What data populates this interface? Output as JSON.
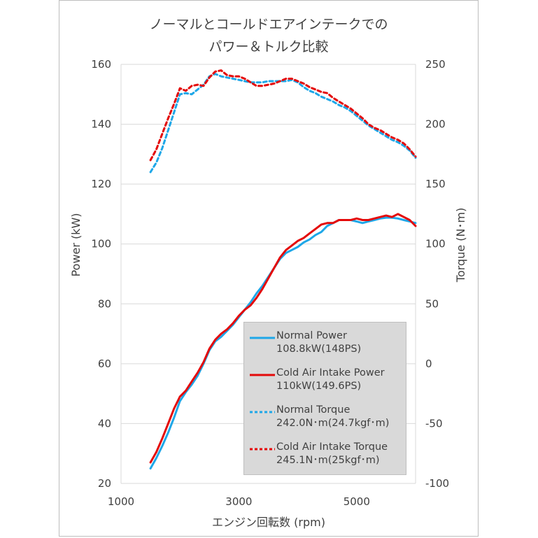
{
  "title_line1": "ノーマルとコールドエアインテークでの",
  "title_line2": "パワー＆トルク比較",
  "colors": {
    "normal": "#1ea7e8",
    "cold": "#e40a0a"
  },
  "chart_data": {
    "type": "line",
    "xlabel": "エンジン回転数 (rpm)",
    "ylabel": "Power (kW)",
    "y2label": "Torque (N･m)",
    "xlim": [
      1000,
      6000
    ],
    "ylim": [
      20,
      160
    ],
    "y2lim": [
      -100,
      250
    ],
    "x_ticks": [
      1000,
      3000,
      5000
    ],
    "y_ticks": [
      20,
      40,
      60,
      80,
      100,
      120,
      140,
      160
    ],
    "y2_ticks": [
      -100,
      -50,
      0,
      50,
      100,
      150,
      200,
      250
    ],
    "grid": "horizontal",
    "legend_position": "bottom-right inside",
    "series": [
      {
        "name": "Normal Power",
        "name_line2": "108.8kW(148PS)",
        "axis": "left",
        "style": "solid",
        "color": "#1ea7e8",
        "x": [
          1500,
          1600,
          1700,
          1800,
          1900,
          2000,
          2100,
          2200,
          2300,
          2400,
          2500,
          2600,
          2700,
          2800,
          2900,
          3000,
          3100,
          3200,
          3300,
          3400,
          3500,
          3600,
          3700,
          3800,
          3900,
          4000,
          4100,
          4200,
          4300,
          4400,
          4500,
          4600,
          4700,
          4800,
          4900,
          5000,
          5100,
          5200,
          5300,
          5400,
          5500,
          5600,
          5700,
          5800,
          5900,
          6000
        ],
        "values": [
          25,
          28.5,
          32.5,
          37,
          42,
          47.5,
          50.5,
          53,
          56,
          60,
          64.5,
          67.5,
          69,
          71,
          73,
          75.5,
          78,
          80.5,
          83.5,
          86,
          89,
          92,
          95,
          97,
          98,
          99,
          100.5,
          101.5,
          103,
          104,
          106,
          107,
          108,
          108,
          108,
          107.5,
          107,
          107.5,
          108,
          108.5,
          108.8,
          108.8,
          108.5,
          108,
          107.5,
          107
        ]
      },
      {
        "name": "Cold Air Intake Power",
        "name_line2": "110kW(149.6PS)",
        "axis": "left",
        "style": "solid",
        "color": "#e40a0a",
        "x": [
          1500,
          1600,
          1700,
          1800,
          1900,
          2000,
          2100,
          2200,
          2300,
          2400,
          2500,
          2600,
          2700,
          2800,
          2900,
          3000,
          3100,
          3200,
          3300,
          3400,
          3500,
          3600,
          3700,
          3800,
          3900,
          4000,
          4100,
          4200,
          4300,
          4400,
          4500,
          4600,
          4700,
          4800,
          4900,
          5000,
          5100,
          5200,
          5300,
          5400,
          5500,
          5600,
          5700,
          5800,
          5900,
          6000
        ],
        "values": [
          27,
          30.5,
          35,
          40,
          45,
          49,
          51,
          54,
          57,
          60.5,
          65,
          68,
          70,
          71.5,
          73.5,
          76,
          78,
          79.5,
          82,
          85,
          88.5,
          92,
          95.5,
          98,
          99.5,
          101,
          102,
          103.5,
          105,
          106.5,
          107,
          107,
          108,
          108,
          108,
          108.5,
          108,
          108,
          108.5,
          109,
          109.5,
          109,
          110,
          109,
          108,
          106
        ]
      },
      {
        "name": "Normal Torque",
        "name_line2": "242.0N･m(24.7kgf･m)",
        "axis": "right",
        "style": "dashed",
        "color": "#1ea7e8",
        "x": [
          1500,
          1600,
          1700,
          1800,
          1900,
          2000,
          2100,
          2200,
          2300,
          2400,
          2500,
          2600,
          2700,
          2800,
          2900,
          3000,
          3100,
          3200,
          3300,
          3400,
          3500,
          3600,
          3700,
          3800,
          3900,
          4000,
          4100,
          4200,
          4300,
          4400,
          4500,
          4600,
          4700,
          4800,
          4900,
          5000,
          5100,
          5200,
          5300,
          5400,
          5500,
          5600,
          5700,
          5800,
          5900,
          6000
        ],
        "values": [
          160,
          168,
          180,
          195,
          210,
          225,
          226,
          225,
          229,
          233,
          240,
          242,
          240,
          239,
          238,
          237,
          236,
          235,
          235,
          235,
          236,
          236,
          236,
          236,
          237,
          235,
          231,
          228,
          226,
          223,
          221,
          219,
          216,
          214,
          211,
          207,
          203,
          199,
          196,
          193,
          190,
          187,
          185,
          182,
          178,
          172
        ]
      },
      {
        "name": "Cold Air Intake Torque",
        "name_line2": "245.1N･m(25kgf･m)",
        "axis": "right",
        "style": "dashed",
        "color": "#e40a0a",
        "x": [
          1500,
          1600,
          1700,
          1800,
          1900,
          2000,
          2100,
          2200,
          2300,
          2400,
          2500,
          2600,
          2700,
          2800,
          2900,
          3000,
          3100,
          3200,
          3300,
          3400,
          3500,
          3600,
          3700,
          3800,
          3900,
          4000,
          4100,
          4200,
          4300,
          4400,
          4500,
          4600,
          4700,
          4800,
          4900,
          5000,
          5100,
          5200,
          5300,
          5400,
          5500,
          5600,
          5700,
          5800,
          5900,
          6000
        ],
        "values": [
          170,
          179,
          192,
          205,
          217,
          230,
          228,
          232,
          233,
          232,
          239,
          244,
          245,
          241,
          240,
          240,
          238,
          235,
          232,
          232,
          233,
          234,
          236,
          238,
          238,
          236,
          234,
          231,
          229,
          227,
          226,
          222,
          219,
          216,
          213,
          209,
          205,
          200,
          197,
          195,
          192,
          189,
          187,
          184,
          179,
          173
        ]
      }
    ]
  }
}
